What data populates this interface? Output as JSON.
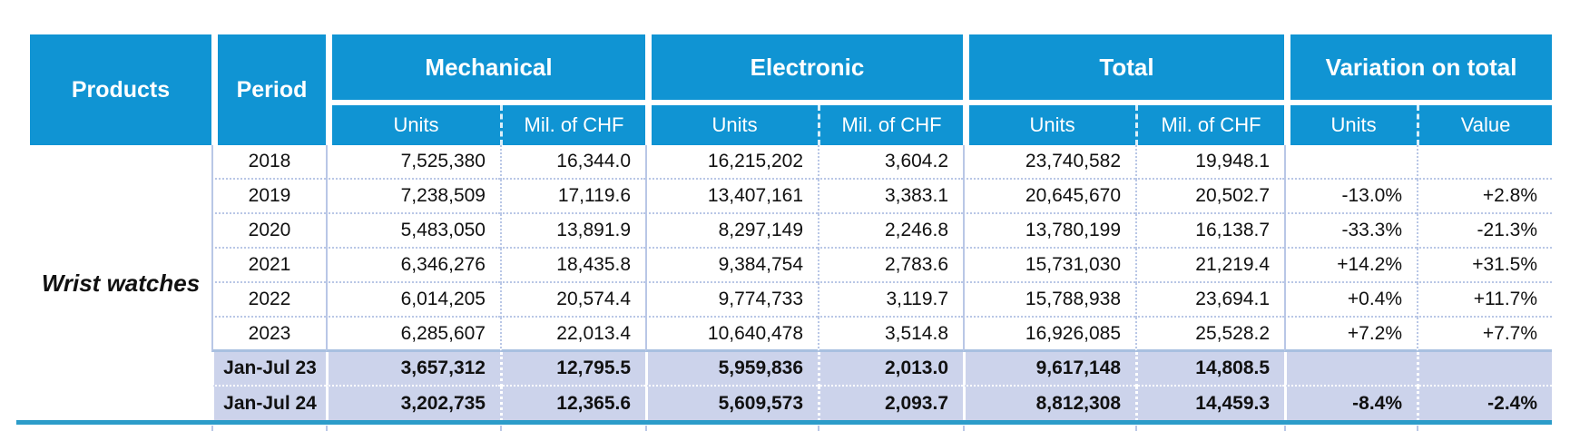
{
  "product": "Wrist watches",
  "header": {
    "products": "Products",
    "period": "Period",
    "groups": [
      {
        "label": "Mechanical",
        "sub": [
          "Units",
          "Mil. of CHF"
        ]
      },
      {
        "label": "Electronic",
        "sub": [
          "Units",
          "Mil. of CHF"
        ]
      },
      {
        "label": "Total",
        "sub": [
          "Units",
          "Mil. of CHF"
        ]
      },
      {
        "label": "Variation on total",
        "sub": [
          "Units",
          "Value"
        ]
      }
    ]
  },
  "rows": [
    {
      "period": "2018",
      "mech_units": "7,525,380",
      "mech_chf": "16,344.0",
      "elec_units": "16,215,202",
      "elec_chf": "3,604.2",
      "total_units": "23,740,582",
      "total_chf": "19,948.1",
      "var_units": "",
      "var_value": "",
      "highlight": false
    },
    {
      "period": "2019",
      "mech_units": "7,238,509",
      "mech_chf": "17,119.6",
      "elec_units": "13,407,161",
      "elec_chf": "3,383.1",
      "total_units": "20,645,670",
      "total_chf": "20,502.7",
      "var_units": "-13.0%",
      "var_value": "+2.8%",
      "highlight": false
    },
    {
      "period": "2020",
      "mech_units": "5,483,050",
      "mech_chf": "13,891.9",
      "elec_units": "8,297,149",
      "elec_chf": "2,246.8",
      "total_units": "13,780,199",
      "total_chf": "16,138.7",
      "var_units": "-33.3%",
      "var_value": "-21.3%",
      "highlight": false
    },
    {
      "period": "2021",
      "mech_units": "6,346,276",
      "mech_chf": "18,435.8",
      "elec_units": "9,384,754",
      "elec_chf": "2,783.6",
      "total_units": "15,731,030",
      "total_chf": "21,219.4",
      "var_units": "+14.2%",
      "var_value": "+31.5%",
      "highlight": false
    },
    {
      "period": "2022",
      "mech_units": "6,014,205",
      "mech_chf": "20,574.4",
      "elec_units": "9,774,733",
      "elec_chf": "3,119.7",
      "total_units": "15,788,938",
      "total_chf": "23,694.1",
      "var_units": "+0.4%",
      "var_value": "+11.7%",
      "highlight": false
    },
    {
      "period": "2023",
      "mech_units": "6,285,607",
      "mech_chf": "22,013.4",
      "elec_units": "10,640,478",
      "elec_chf": "3,514.8",
      "total_units": "16,926,085",
      "total_chf": "25,528.2",
      "var_units": "+7.2%",
      "var_value": "+7.7%",
      "highlight": false
    },
    {
      "period": "Jan-Jul 23",
      "mech_units": "3,657,312",
      "mech_chf": "12,795.5",
      "elec_units": "5,959,836",
      "elec_chf": "2,013.0",
      "total_units": "9,617,148",
      "total_chf": "14,808.5",
      "var_units": "",
      "var_value": "",
      "highlight": true
    },
    {
      "period": "Jan-Jul 24",
      "mech_units": "3,202,735",
      "mech_chf": "12,365.6",
      "elec_units": "5,609,573",
      "elec_chf": "2,093.7",
      "total_units": "8,812,308",
      "total_chf": "14,459.3",
      "var_units": "-8.4%",
      "var_value": "-2.4%",
      "highlight": true
    }
  ],
  "colors": {
    "header_blue": "#1094d3",
    "highlight_row": "#ccd3eb",
    "grid_line": "#b9c7e6",
    "pre_highlight_rule": "#a9c0e0",
    "bottom_accent": "#2c9cc9"
  }
}
